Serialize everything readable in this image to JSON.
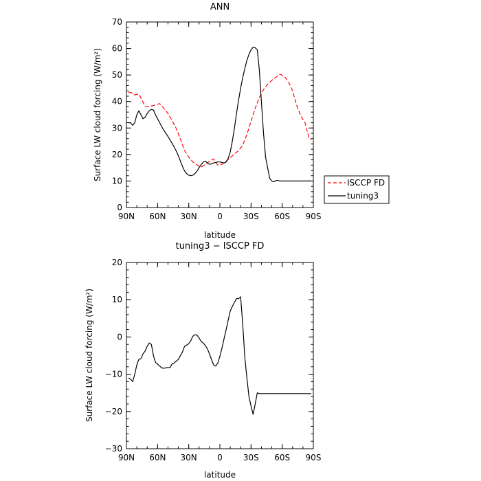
{
  "chart_data": [
    {
      "type": "line",
      "title": "ANN",
      "xlabel": "latitude",
      "ylabel": "Surface LW cloud forcing (W/m²)",
      "xlim": [
        90,
        -90
      ],
      "ylim": [
        0,
        70
      ],
      "x_ticks": [
        90,
        60,
        30,
        0,
        -30,
        -60,
        -90
      ],
      "x_tick_labels": [
        "90N",
        "60N",
        "30N",
        "0",
        "30S",
        "60S",
        "90S"
      ],
      "y_ticks": [
        0,
        10,
        20,
        30,
        40,
        50,
        60,
        70
      ],
      "y_tick_labels": [
        "0",
        "10",
        "20",
        "30",
        "40",
        "50",
        "60",
        "70"
      ],
      "legend_position": "right",
      "series": [
        {
          "name": "ISCCP FD",
          "color": "#ff0000",
          "dash": "dashed",
          "x": [
            88,
            85,
            82,
            78,
            75,
            72,
            68,
            65,
            62,
            58,
            54,
            50,
            46,
            42,
            38,
            34,
            30,
            26,
            22,
            18,
            14,
            10,
            6,
            2,
            -2,
            -6,
            -10,
            -14,
            -18,
            -22,
            -26,
            -30,
            -34,
            -38,
            -42,
            -46,
            -50,
            -54,
            -58,
            -62,
            -66,
            -70,
            -74,
            -78,
            -82,
            -86,
            -88
          ],
          "values": [
            43.5,
            43.3,
            42.5,
            42.8,
            40.5,
            38.2,
            38.2,
            38.4,
            38.7,
            39.2,
            37.5,
            35.5,
            32.8,
            29.8,
            25.8,
            21.5,
            19.0,
            17.2,
            16.0,
            15.3,
            16.2,
            17.5,
            18.3,
            16.0,
            16.3,
            17.5,
            18.8,
            20.2,
            21.5,
            23.5,
            27.5,
            32.5,
            37.5,
            41.5,
            44.5,
            46.5,
            48.0,
            49.2,
            50.3,
            49.5,
            47.5,
            44.0,
            38.5,
            34.5,
            32.0,
            26.0,
            25.5
          ]
        },
        {
          "name": "tuning3",
          "color": "#000000",
          "dash": "solid",
          "x": [
            88,
            86,
            84,
            82,
            80,
            78,
            76,
            74,
            72,
            70,
            68,
            66,
            64,
            62,
            60,
            58,
            56,
            54,
            52,
            50,
            48,
            46,
            44,
            42,
            40,
            38,
            36,
            34,
            32,
            30,
            28,
            26,
            24,
            22,
            20,
            18,
            16,
            14,
            12,
            10,
            8,
            6,
            4,
            2,
            0,
            -2,
            -4,
            -6,
            -8,
            -10,
            -12,
            -14,
            -16,
            -18,
            -20,
            -22,
            -24,
            -26,
            -28,
            -30,
            -32,
            -34,
            -36,
            -38,
            -40,
            -42,
            -44,
            -46,
            -48,
            -50,
            -52,
            -54,
            -56,
            -58,
            -60,
            -62,
            -64,
            -66,
            -68,
            -70,
            -72,
            -74,
            -76,
            -78,
            -80,
            -82,
            -84,
            -86,
            -88
          ],
          "values": [
            32.0,
            32.0,
            31.0,
            32.0,
            35.0,
            36.5,
            35.0,
            33.5,
            34.0,
            35.5,
            36.5,
            37.0,
            36.8,
            35.0,
            33.5,
            32.0,
            30.5,
            29.2,
            28.0,
            26.8,
            25.5,
            24.2,
            22.8,
            21.3,
            19.5,
            17.5,
            15.5,
            13.8,
            12.8,
            12.2,
            12.0,
            12.2,
            12.8,
            13.8,
            15.0,
            16.2,
            17.2,
            17.5,
            16.8,
            16.3,
            16.5,
            16.8,
            17.0,
            17.2,
            17.2,
            17.0,
            16.8,
            17.2,
            18.5,
            21.0,
            25.0,
            30.0,
            35.5,
            40.5,
            45.0,
            49.0,
            52.5,
            55.5,
            57.8,
            59.5,
            60.5,
            60.3,
            59.5,
            52.0,
            40.0,
            28.0,
            19.0,
            15.0,
            11.0,
            10.0,
            9.7,
            10.2,
            10.2,
            10.0,
            10.0,
            10.0,
            10.0,
            10.0,
            10.0,
            10.0,
            10.0,
            10.0,
            10.0,
            10.0,
            10.0,
            10.0,
            10.0,
            10.0,
            10.0
          ]
        }
      ]
    },
    {
      "type": "line",
      "title": "tuning3 − ISCCP FD",
      "xlabel": "latitude",
      "ylabel": "Surface LW cloud forcing (W/m²)",
      "xlim": [
        90,
        -90
      ],
      "ylim": [
        -30,
        20
      ],
      "x_ticks": [
        90,
        60,
        30,
        0,
        -30,
        -60,
        -90
      ],
      "x_tick_labels": [
        "90N",
        "60N",
        "30N",
        "0",
        "30S",
        "60S",
        "90S"
      ],
      "y_ticks": [
        -30,
        -20,
        -10,
        0,
        10,
        20
      ],
      "y_tick_labels": [
        "−30",
        "−20",
        "−10",
        "0",
        "10",
        "20"
      ],
      "series": [
        {
          "color": "#000000",
          "dash": "solid",
          "x": [
            88,
            86,
            84,
            82,
            80,
            78,
            76,
            74,
            72,
            70,
            68,
            66,
            64,
            62,
            60,
            58,
            56,
            54,
            52,
            50,
            48,
            46,
            44,
            42,
            40,
            38,
            36,
            34,
            32,
            30,
            28,
            26,
            24,
            22,
            20,
            18,
            16,
            14,
            12,
            10,
            8,
            6,
            4,
            2,
            0,
            -2,
            -4,
            -6,
            -8,
            -10,
            -12,
            -14,
            -16,
            -18,
            -20,
            -22,
            -24,
            -26,
            -28,
            -30,
            -32,
            -34,
            -36,
            -38,
            -40,
            -42,
            -44,
            -46,
            -48,
            -50,
            -52,
            -54,
            -56,
            -58,
            -60,
            -62,
            -64,
            -66,
            -68,
            -70,
            -72,
            -74,
            -76,
            -78,
            -80,
            -82,
            -84,
            -86,
            -88
          ],
          "values": [
            -11.0,
            -11.3,
            -12.0,
            -10.0,
            -7.5,
            -6.0,
            -5.8,
            -4.5,
            -3.8,
            -2.5,
            -1.6,
            -2.0,
            -5.0,
            -6.8,
            -7.3,
            -7.8,
            -8.3,
            -8.4,
            -8.3,
            -8.2,
            -8.2,
            -7.2,
            -7.0,
            -6.5,
            -6.0,
            -5.0,
            -4.0,
            -2.5,
            -2.2,
            -1.8,
            -1.0,
            0.2,
            0.6,
            0.5,
            -0.3,
            -1.2,
            -1.6,
            -2.3,
            -3.2,
            -4.6,
            -6.1,
            -7.5,
            -7.8,
            -7.0,
            -5.2,
            -3.0,
            -0.5,
            2.0,
            4.5,
            7.0,
            8.2,
            9.3,
            10.3,
            10.3,
            10.8,
            3.5,
            -5.5,
            -11.0,
            -16.0,
            -18.5,
            -20.8,
            -18.0,
            -15.0,
            -15.2,
            -15.2,
            -15.2,
            -15.2,
            -15.2,
            -15.2,
            -15.2,
            -15.2,
            -15.2,
            -15.2,
            -15.2,
            -15.2,
            -15.2,
            -15.2,
            -15.2,
            -15.2,
            -15.2,
            -15.2,
            -15.2,
            -15.2,
            -15.2,
            -15.2,
            -15.2,
            -15.2,
            -15.2,
            -15.2
          ]
        }
      ]
    }
  ]
}
